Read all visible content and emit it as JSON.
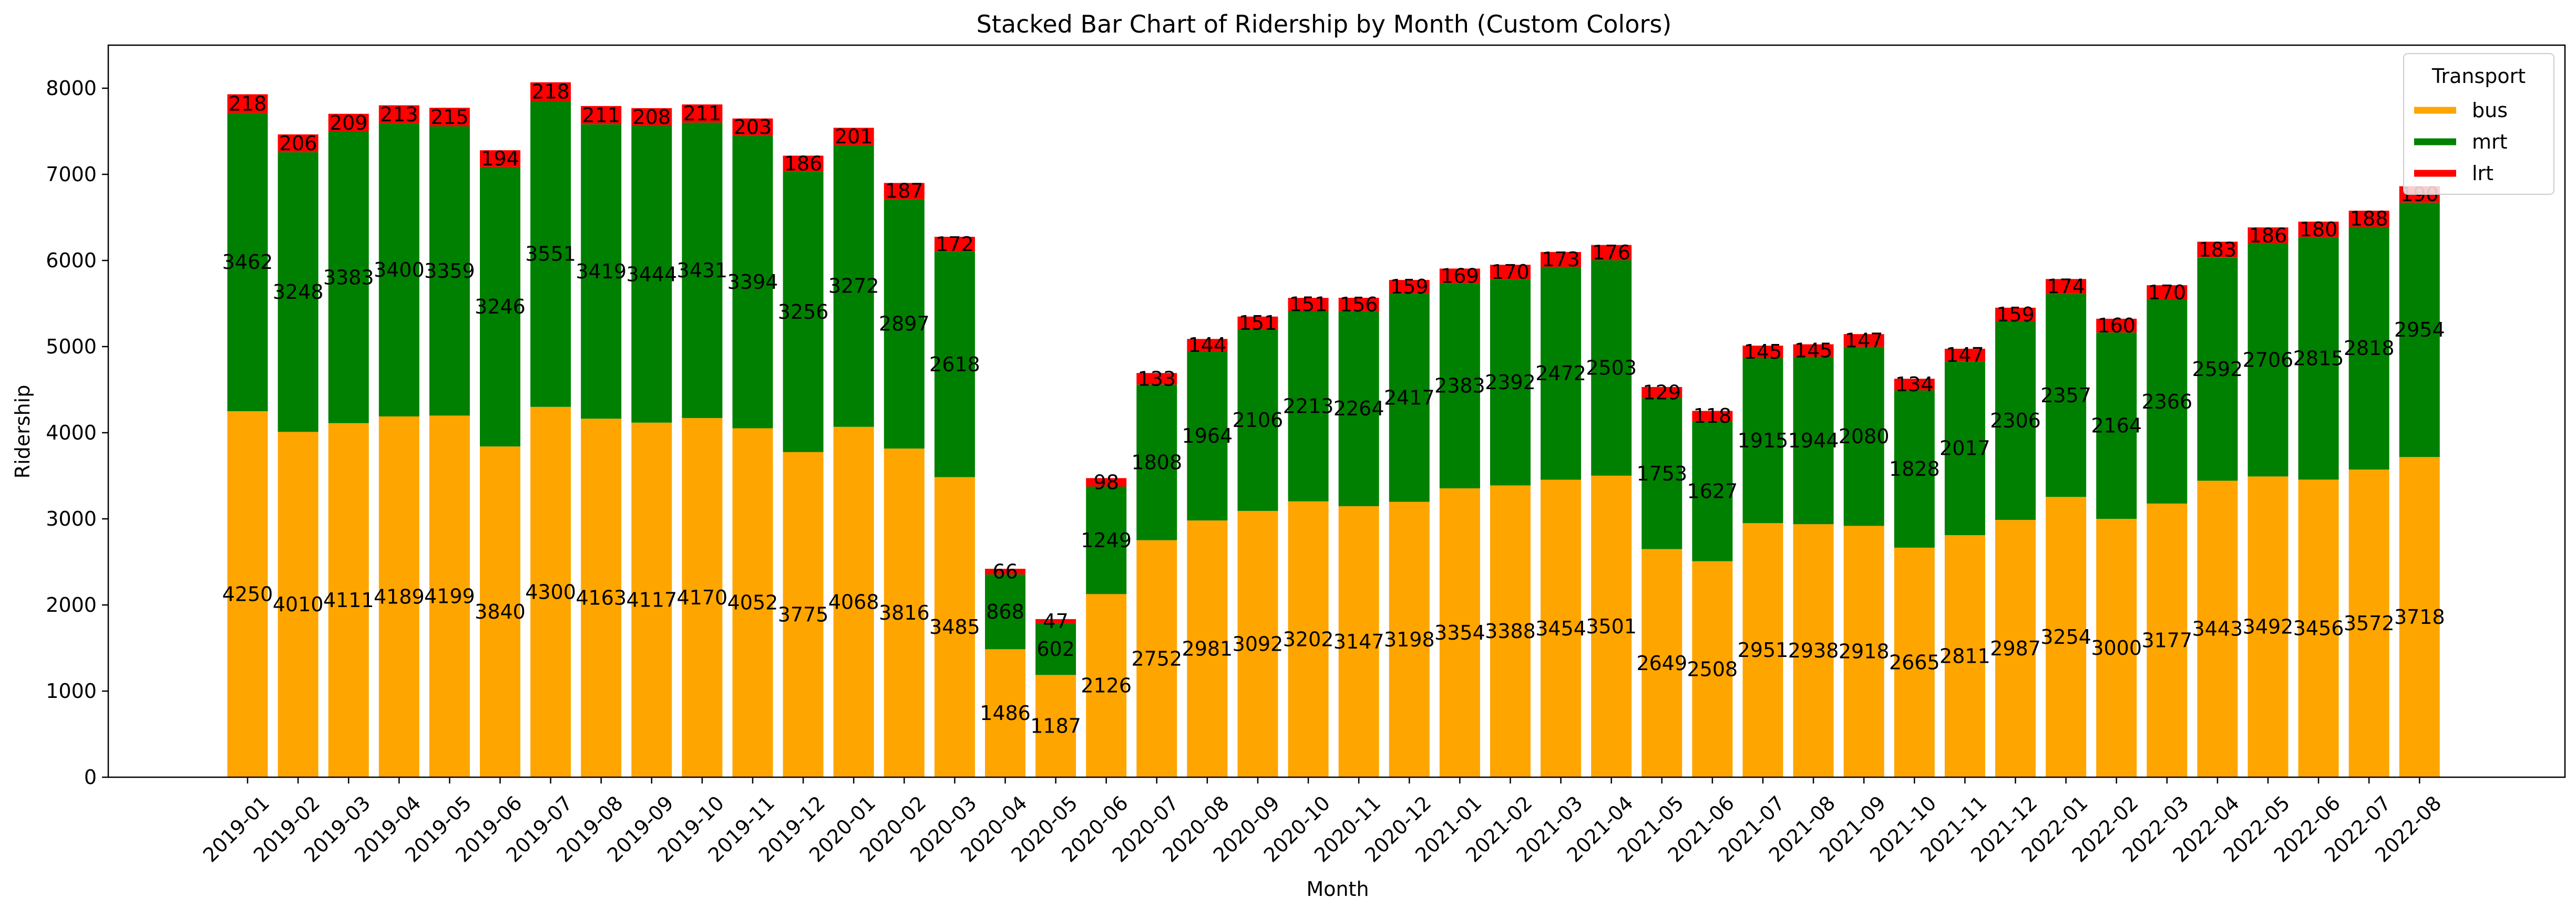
{
  "chart_data": {
    "type": "bar",
    "stacked": true,
    "title": "Stacked Bar Chart of Ridership by Month (Custom Colors)",
    "xlabel": "Month",
    "ylabel": "Ridership",
    "ylim": [
      0,
      8500
    ],
    "yticks": [
      0,
      1000,
      2000,
      3000,
      4000,
      5000,
      6000,
      7000,
      8000
    ],
    "grid": false,
    "legend": {
      "title": "Transport",
      "placement": "top-right"
    },
    "categories": [
      "2019-01",
      "2019-02",
      "2019-03",
      "2019-04",
      "2019-05",
      "2019-06",
      "2019-07",
      "2019-08",
      "2019-09",
      "2019-10",
      "2019-11",
      "2019-12",
      "2020-01",
      "2020-02",
      "2020-03",
      "2020-04",
      "2020-05",
      "2020-06",
      "2020-07",
      "2020-08",
      "2020-09",
      "2020-10",
      "2020-11",
      "2020-12",
      "2021-01",
      "2021-02",
      "2021-03",
      "2021-04",
      "2021-05",
      "2021-06",
      "2021-07",
      "2021-08",
      "2021-09",
      "2021-10",
      "2021-11",
      "2021-12",
      "2022-01",
      "2022-02",
      "2022-03",
      "2022-04",
      "2022-05",
      "2022-06",
      "2022-07",
      "2022-08"
    ],
    "series": [
      {
        "name": "bus",
        "color": "#FFA500",
        "values": [
          4250,
          4010,
          4111,
          4189,
          4199,
          3840,
          4300,
          4163,
          4117,
          4170,
          4052,
          3775,
          4068,
          3816,
          3485,
          1486,
          1187,
          2126,
          2752,
          2981,
          3092,
          3202,
          3147,
          3198,
          3354,
          3388,
          3454,
          3501,
          2649,
          2508,
          2951,
          2938,
          2918,
          2665,
          2811,
          2987,
          3254,
          3000,
          3177,
          3443,
          3492,
          3456,
          3572,
          3718
        ]
      },
      {
        "name": "mrt",
        "color": "#008000",
        "values": [
          3462,
          3248,
          3383,
          3400,
          3359,
          3246,
          3551,
          3419,
          3444,
          3431,
          3394,
          3256,
          3272,
          2897,
          2618,
          868,
          602,
          1249,
          1808,
          1964,
          2106,
          2213,
          2264,
          2417,
          2383,
          2392,
          2472,
          2503,
          1753,
          1627,
          1915,
          1944,
          2080,
          1828,
          2017,
          2306,
          2357,
          2164,
          2366,
          2592,
          2706,
          2815,
          2818,
          2954
        ]
      },
      {
        "name": "lrt",
        "color": "#FF0000",
        "values": [
          218,
          206,
          209,
          213,
          215,
          194,
          218,
          211,
          208,
          211,
          203,
          186,
          201,
          187,
          172,
          66,
          47,
          98,
          133,
          144,
          151,
          151,
          156,
          159,
          169,
          170,
          173,
          176,
          129,
          118,
          145,
          145,
          147,
          134,
          147,
          159,
          174,
          160,
          170,
          183,
          186,
          180,
          188,
          190
        ]
      }
    ]
  }
}
